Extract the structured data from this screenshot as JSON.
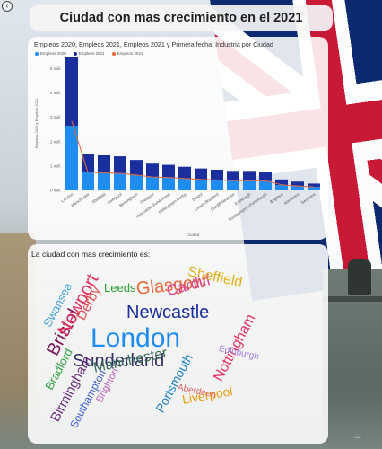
{
  "page": {
    "title": "Ciudad con mas crecimiento en el 2021",
    "back_icon": "back-arrow-circle-icon",
    "forward_icon": "arrow-right-icon"
  },
  "chart": {
    "title": "Empleos 2020, Empleos 2021, Empleos 2021 y Primera fecha: Industria por Ciudad",
    "legend": [
      {
        "name": "Empleos 2020",
        "color": "#1e8cf0"
      },
      {
        "name": "Empleos 2021",
        "color": "#1a2e9e"
      },
      {
        "name": "Empleos 2021",
        "color": "#e8663d"
      }
    ],
    "ylabel": "Empleos 2020 y Empleos 2021",
    "xlabel": "Ciudad"
  },
  "chart_data": {
    "type": "bar",
    "stacked": true,
    "title": "Empleos 2020, Empleos 2021, Empleos 2021 y Primera fecha: Industria por Ciudad",
    "xlabel": "Ciudad",
    "ylabel": "Empleos 2020 y Empleos 2021",
    "ylim": [
      0,
      5.5
    ],
    "yticks": [
      "0 mill.",
      "1 mill.",
      "2 mill.",
      "3 mill.",
      "4 mill.",
      "5 mill."
    ],
    "categories": [
      "London",
      "Manchester",
      "Sheffield",
      "Liverpool",
      "Birmingham",
      "Glasgow",
      "Newcastle-Sunderland",
      "Nottingham-Derby",
      "Bristol",
      "Leeds-Bradford",
      "Cardiff-Newport",
      "Edinburgh",
      "Southampton-Portsmouth",
      "Brighton",
      "Aberdeen",
      "Swansea"
    ],
    "series": [
      {
        "name": "Empleos 2020",
        "values": [
          2.65,
          0.75,
          0.72,
          0.7,
          0.62,
          0.55,
          0.52,
          0.48,
          0.45,
          0.42,
          0.4,
          0.4,
          0.38,
          0.22,
          0.18,
          0.14
        ]
      },
      {
        "name": "Empleos 2021",
        "values": [
          2.85,
          0.75,
          0.72,
          0.7,
          0.63,
          0.55,
          0.53,
          0.49,
          0.45,
          0.43,
          0.4,
          0.4,
          0.39,
          0.23,
          0.18,
          0.14
        ]
      },
      {
        "name": "Empleos 2021",
        "type": "line",
        "values": [
          2.85,
          0.75,
          0.72,
          0.7,
          0.63,
          0.55,
          0.53,
          0.49,
          0.45,
          0.43,
          0.4,
          0.4,
          0.39,
          0.23,
          0.18,
          0.14
        ]
      }
    ],
    "legend": "top-left",
    "grid": false
  },
  "cloud": {
    "title": "La ciudad con mas crecimiento es:",
    "words": [
      {
        "text": "London",
        "color": "#1e8cf0"
      },
      {
        "text": "Newcastle",
        "color": "#1a2e9e"
      },
      {
        "text": "Sunderland",
        "color": "#333366"
      },
      {
        "text": "Glasgow",
        "color": "#e8663d"
      },
      {
        "text": "Nottingham",
        "color": "#e03060"
      },
      {
        "text": "Bristol",
        "color": "#7a1a5a"
      },
      {
        "text": "Newport",
        "color": "#e03060"
      },
      {
        "text": "Manchester",
        "color": "#3a6b5a"
      },
      {
        "text": "Birmingham",
        "color": "#6a2a7a"
      },
      {
        "text": "Liverpool",
        "color": "#e8a010"
      },
      {
        "text": "Cardiff",
        "color": "#d64090"
      },
      {
        "text": "Sheffield",
        "color": "#e0b020"
      },
      {
        "text": "Portsmouth",
        "color": "#2080c0"
      },
      {
        "text": "Derby",
        "color": "#e05050"
      },
      {
        "text": "Swansea",
        "color": "#40a0e0"
      },
      {
        "text": "Bradford",
        "color": "#30a040"
      },
      {
        "text": "Southampton",
        "color": "#4060d0"
      },
      {
        "text": "Leeds",
        "color": "#30a030"
      },
      {
        "text": "Edinburgh",
        "color": "#a080e0"
      },
      {
        "text": "Aberdeen",
        "color": "#e06060"
      },
      {
        "text": "Brighton",
        "color": "#c060c0"
      }
    ]
  }
}
